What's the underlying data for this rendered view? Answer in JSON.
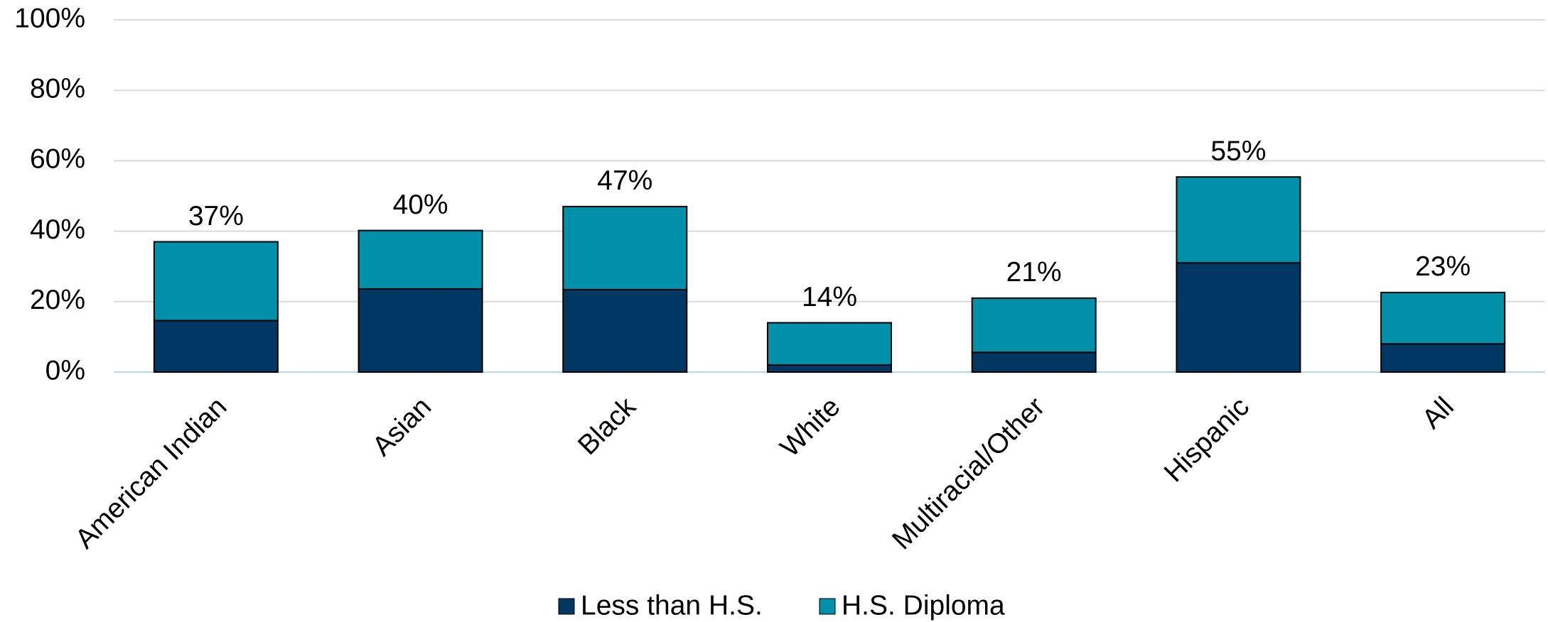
{
  "chart_data": {
    "type": "stacked_bar",
    "categories": [
      "American Indian",
      "Asian",
      "Black",
      "White",
      "Multiracial/Other",
      "Hispanic",
      "All"
    ],
    "series": [
      {
        "name": "Less than H.S.",
        "color": "#003863",
        "values": [
          14.6,
          23.6,
          23.4,
          2.0,
          5.6,
          31.0,
          8.0
        ]
      },
      {
        "name": "H.S. Diploma",
        "color": "#0090aa",
        "values": [
          22.4,
          16.6,
          23.6,
          12.0,
          15.4,
          24.4,
          14.6
        ]
      }
    ],
    "totals": [
      37,
      40,
      47,
      14,
      21,
      55,
      23
    ],
    "total_labels": [
      "37%",
      "40%",
      "47%",
      "14%",
      "21%",
      "55%",
      "23%"
    ],
    "ylim": [
      0,
      100
    ],
    "yticks": [
      {
        "value": 0,
        "label": "0%"
      },
      {
        "value": 20,
        "label": "20%"
      },
      {
        "value": 40,
        "label": "40%"
      },
      {
        "value": 60,
        "label": "60%"
      },
      {
        "value": 80,
        "label": "80%"
      },
      {
        "value": 100,
        "label": "100%"
      }
    ],
    "grid": true,
    "legend": "bottom"
  }
}
